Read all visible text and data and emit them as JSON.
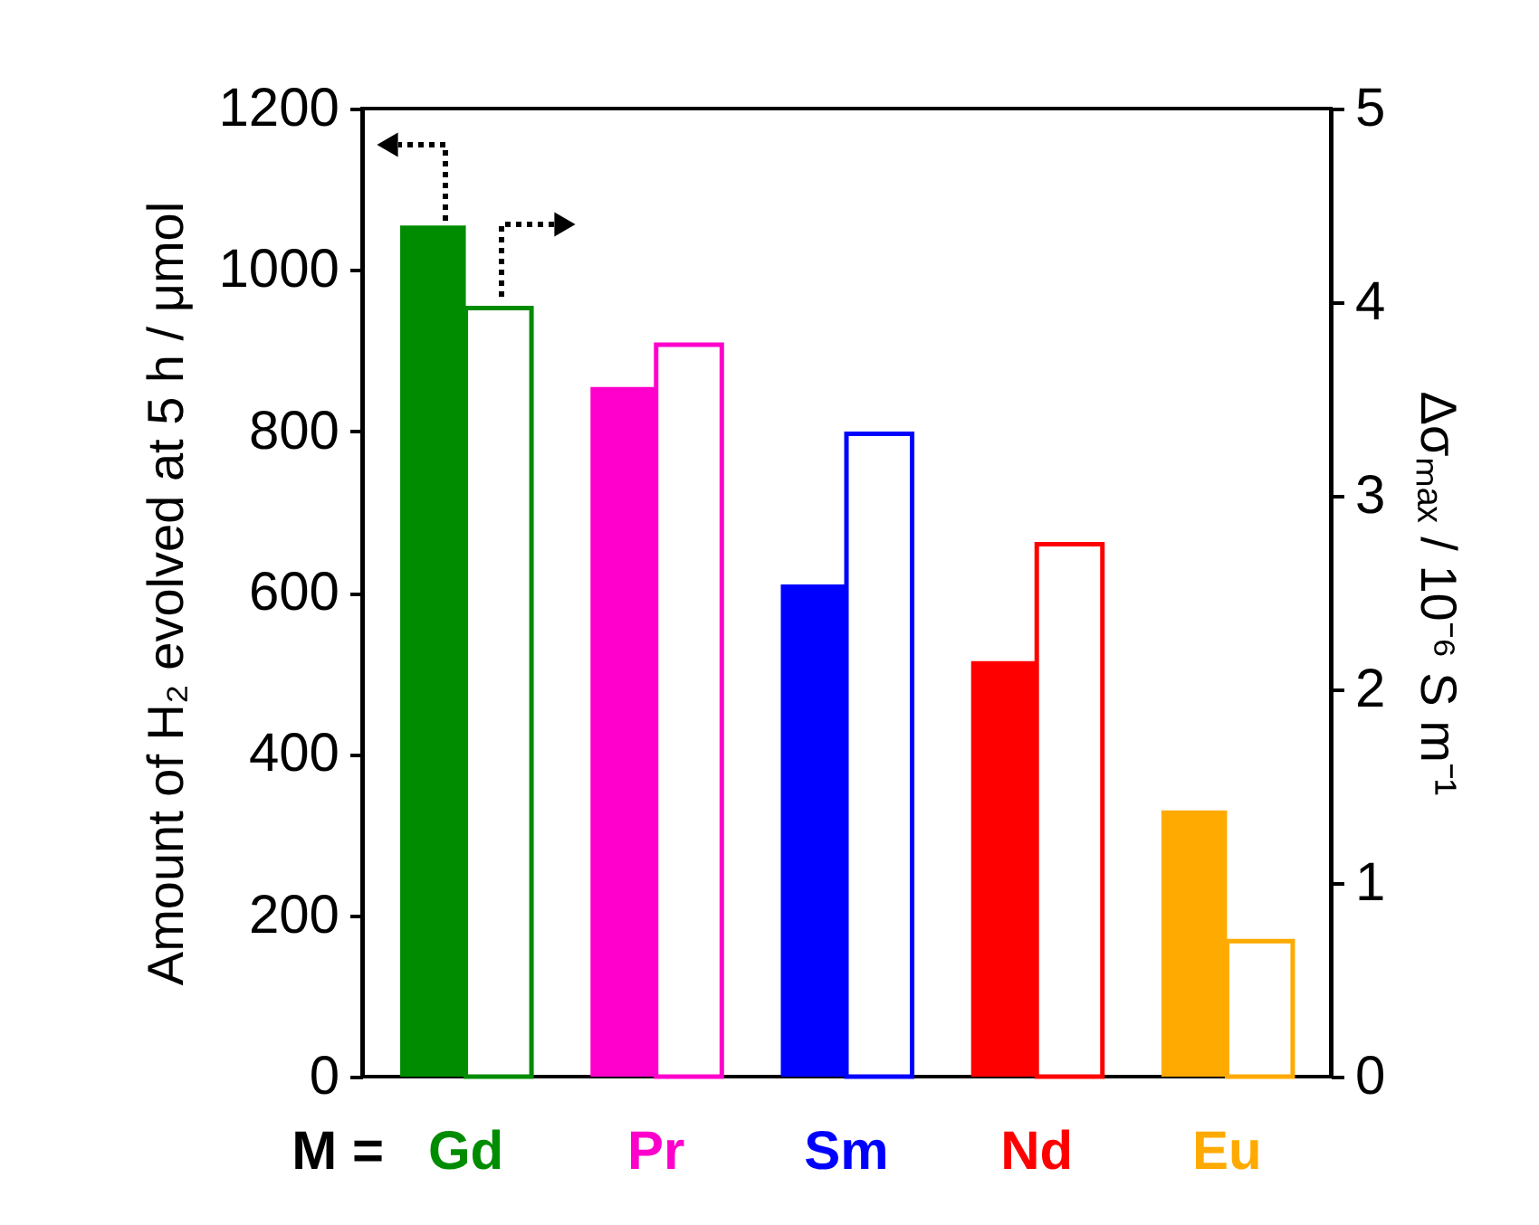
{
  "chart_data": {
    "type": "bar",
    "categories": [
      "Gd",
      "Pr",
      "Sm",
      "Nd",
      "Eu"
    ],
    "colors": [
      "#008c00",
      "#ff00cc",
      "#0000ff",
      "#ff0000",
      "#ffaa00"
    ],
    "xlabel": "M =",
    "ylabel": "Amount of H₂ evolved at 5 h / μmol",
    "y2label": "Δσₘₐₓ / 10⁻⁶ S m⁻¹",
    "series": [
      {
        "colors": [
          "#008c00",
          "#ff00cc",
          "#0000ff",
          "#ff0000",
          "#ffaa00"
        ],
        "values": [
          1055,
          855,
          610,
          515,
          330
        ]
      },
      {
        "axis": "y2",
        "colors": [
          "#008c00",
          "#ff00cc",
          "#0000ff",
          "#ff0000",
          "#ffaa00"
        ],
        "values": [
          3.97,
          3.78,
          3.32,
          2.75,
          0.7
        ]
      }
    ],
    "ylim": [
      0,
      1200
    ],
    "yticks": [
      0,
      200,
      400,
      600,
      800,
      1000,
      1200
    ],
    "y2lim": [
      0,
      5
    ],
    "y2ticks": [
      0,
      1,
      2,
      3,
      4,
      5
    ],
    "grid": false
  }
}
